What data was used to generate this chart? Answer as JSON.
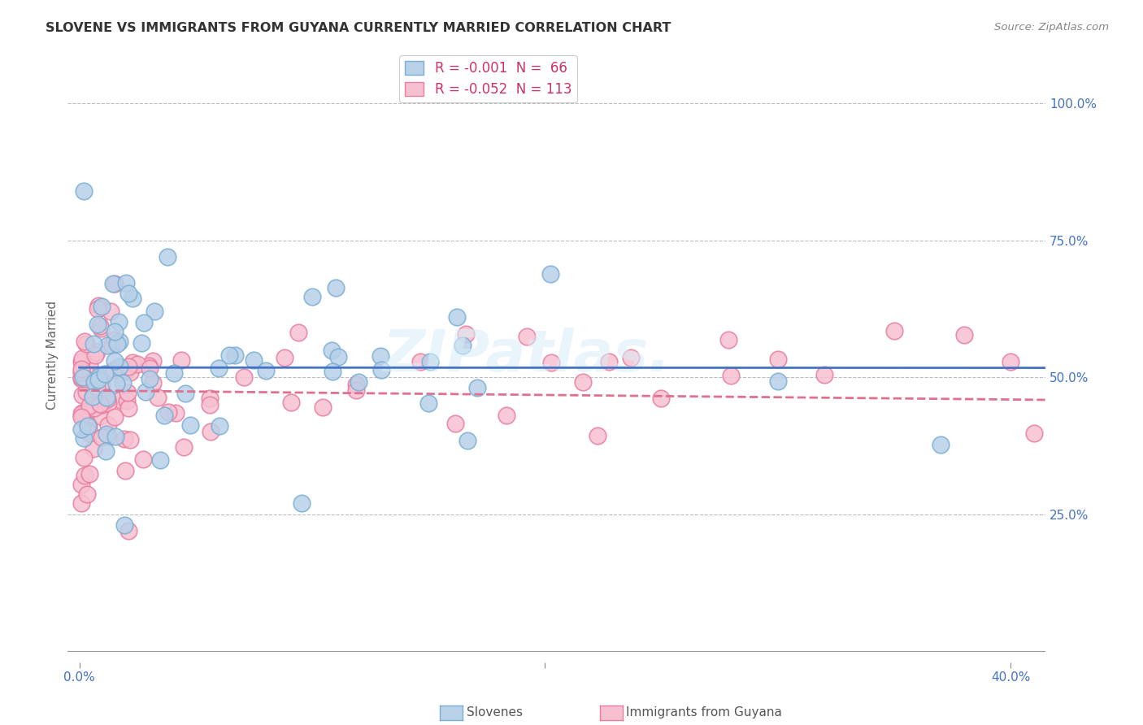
{
  "title": "SLOVENE VS IMMIGRANTS FROM GUYANA CURRENTLY MARRIED CORRELATION CHART",
  "source": "Source: ZipAtlas.com",
  "ylabel": "Currently Married",
  "ytick_labels": [
    "100.0%",
    "75.0%",
    "50.0%",
    "25.0%"
  ],
  "ytick_values": [
    1.0,
    0.75,
    0.5,
    0.25
  ],
  "xlim": [
    -0.005,
    0.415
  ],
  "ylim": [
    -0.02,
    1.1
  ],
  "legend_label1": "R = -0.001  N =  66",
  "legend_label2": "R = -0.052  N = 113",
  "legend_bottom_label1": "Slovenes",
  "legend_bottom_label2": "Immigrants from Guyana",
  "color_blue_fill": "#b8d0e8",
  "color_blue_edge": "#7bafd4",
  "color_pink_fill": "#f7c0d0",
  "color_pink_edge": "#e87da0",
  "color_blue_line": "#4472c4",
  "color_pink_line": "#e07090",
  "R1": -0.001,
  "N1": 66,
  "R2": -0.052,
  "N2": 113
}
